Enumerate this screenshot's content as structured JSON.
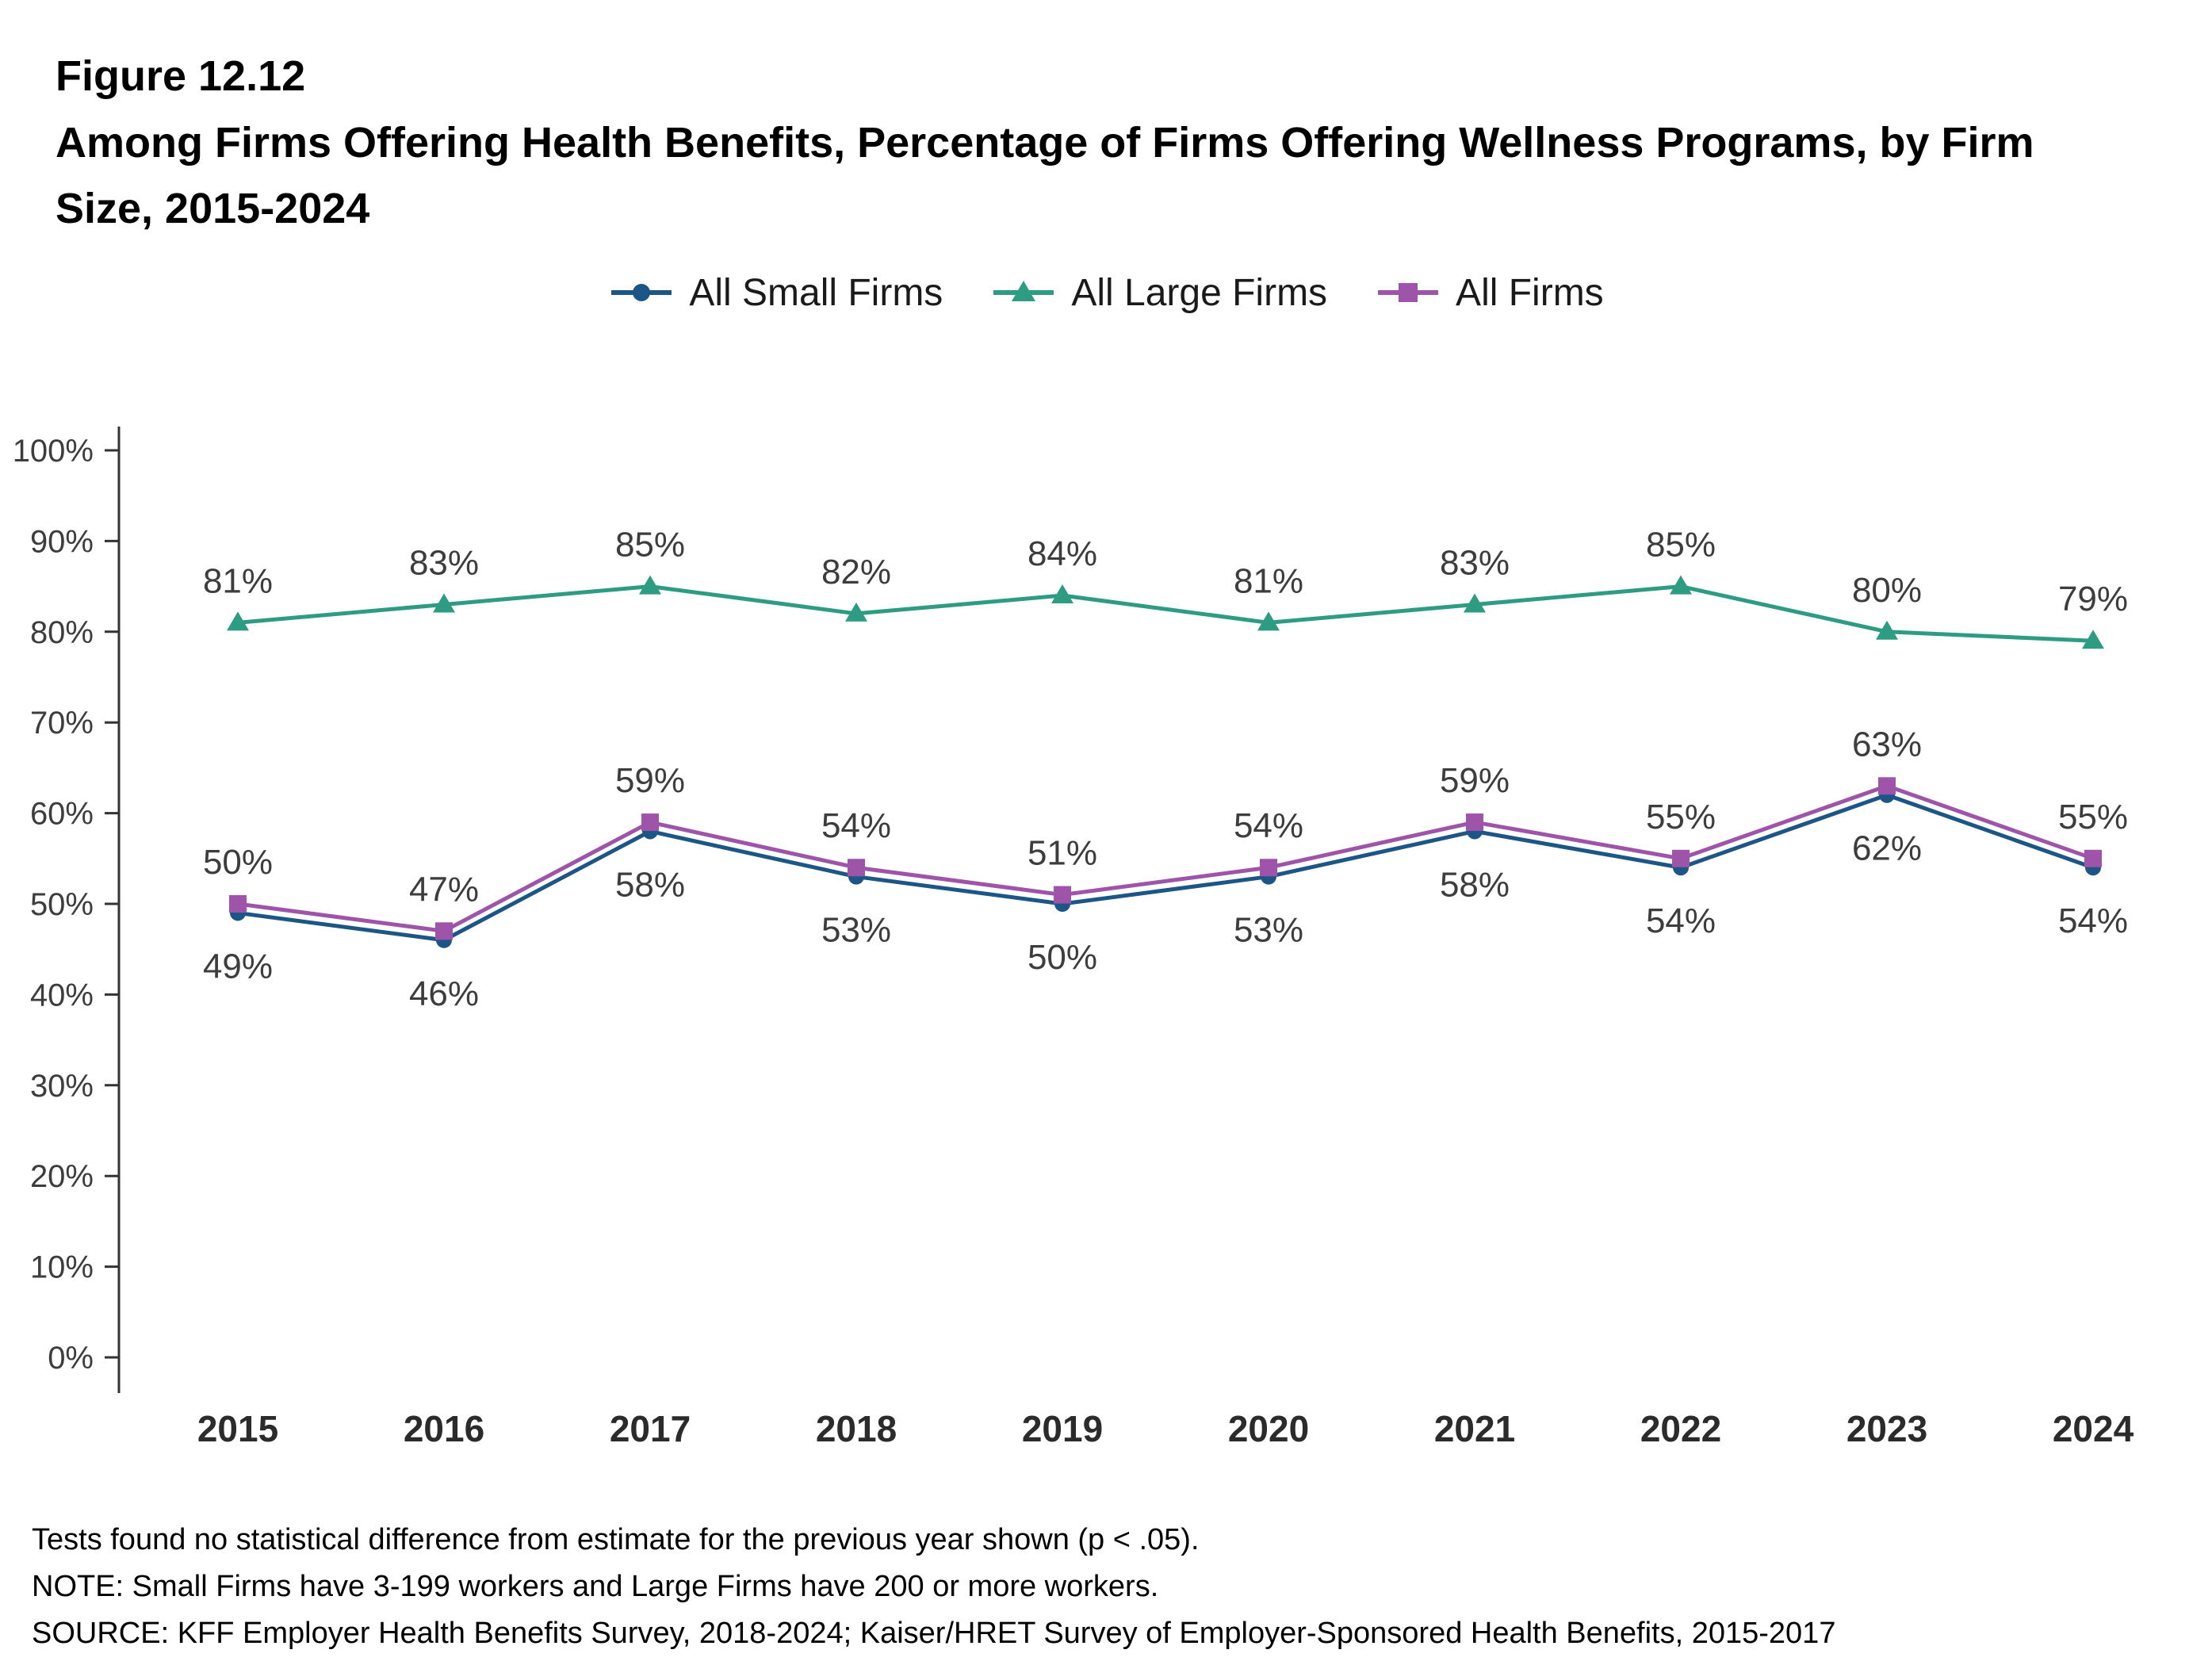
{
  "figure": {
    "number": "Figure 12.12",
    "title": "Among Firms Offering Health Benefits, Percentage of Firms Offering Wellness Programs, by Firm Size, 2015-2024"
  },
  "legend": [
    {
      "label": "All Small Firms",
      "color": "#1c5687",
      "marker": "circle"
    },
    {
      "label": "All Large Firms",
      "color": "#2e9b83",
      "marker": "triangle"
    },
    {
      "label": "All Firms",
      "color": "#9e54a8",
      "marker": "square"
    }
  ],
  "chart_data": {
    "type": "line",
    "title": "Among Firms Offering Health Benefits, Percentage of Firms Offering Wellness Programs, by Firm Size, 2015-2024",
    "categories": [
      "2015",
      "2016",
      "2017",
      "2018",
      "2019",
      "2020",
      "2021",
      "2022",
      "2023",
      "2024"
    ],
    "series": [
      {
        "name": "All Small Firms",
        "color": "#1c5687",
        "marker": "circle",
        "label_position": "below",
        "values": [
          49,
          46,
          58,
          53,
          50,
          53,
          58,
          54,
          62,
          54
        ]
      },
      {
        "name": "All Large Firms",
        "color": "#2e9b83",
        "marker": "triangle",
        "label_position": "above",
        "values": [
          81,
          83,
          85,
          82,
          84,
          81,
          83,
          85,
          80,
          79
        ]
      },
      {
        "name": "All Firms",
        "color": "#9e54a8",
        "marker": "square",
        "label_position": "above",
        "values": [
          50,
          47,
          59,
          54,
          51,
          54,
          59,
          55,
          63,
          55
        ]
      }
    ],
    "ylim": [
      0,
      100
    ],
    "ytick_step": 10,
    "ytick_suffix": "%",
    "grid": false,
    "legend_position": "top",
    "label_suffix": "%",
    "axis_color": "#333333",
    "label_color": "#3d3d3d",
    "xtick_color": "#2b2b2b"
  },
  "notes": {
    "stat": "Tests found no statistical difference from estimate for the previous year shown (p < .05).",
    "note": "NOTE: Small Firms have 3-199 workers and Large Firms have 200 or more workers.",
    "source": "SOURCE: KFF Employer Health Benefits Survey, 2018-2024; Kaiser/HRET Survey of Employer-Sponsored Health Benefits, 2015-2017"
  }
}
